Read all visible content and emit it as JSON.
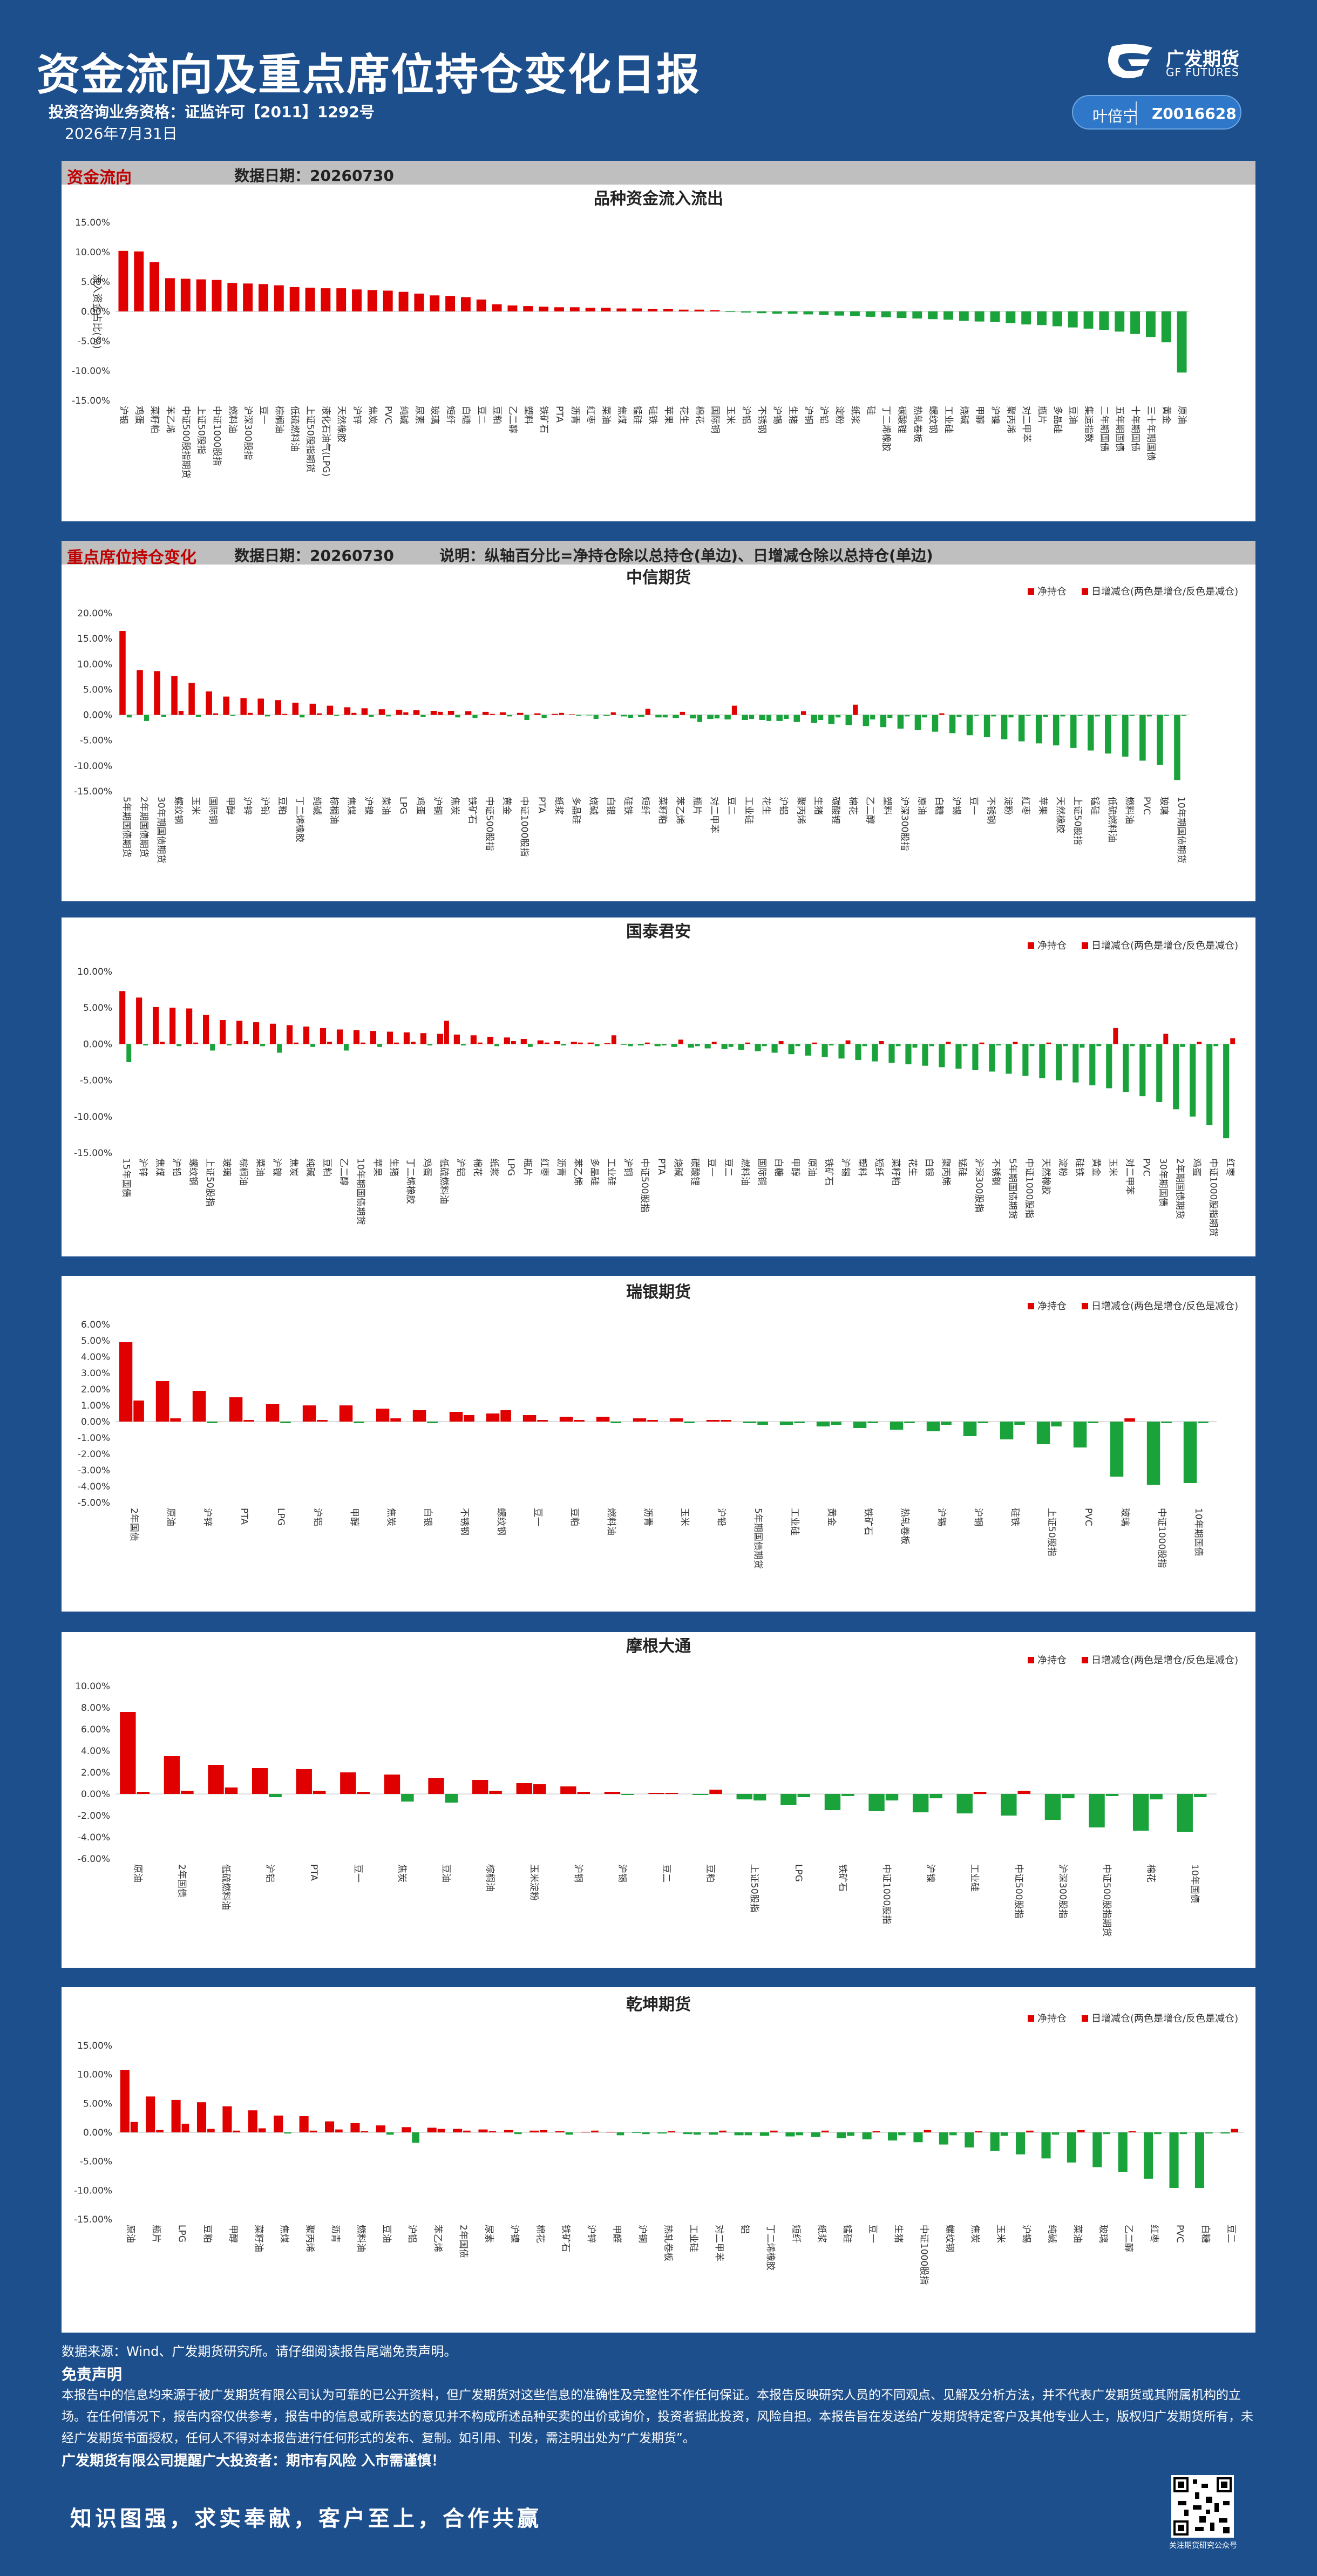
{
  "header": {
    "title": "资金流向及重点席位持仓变化日报",
    "license": "投资咨询业务资格：证监许可【2011】1292号",
    "date": "2026年7月31日",
    "logo_text": "广发期货",
    "logo_sub": "GF FUTURES",
    "analyst_name": "叶倍宁",
    "analyst_id": "Z0016628"
  },
  "flow_section": {
    "name": "资金流向",
    "date_label": "数据日期：",
    "date": "20260730"
  },
  "seat_section": {
    "name": "重点席位持仓变化",
    "date_label": "数据日期：",
    "date": "20260730",
    "note": "说明：纵轴百分比=净持仓除以总持仓(单边)、日增减仓除以总持仓(单边)"
  },
  "colors": {
    "up": "#e00000",
    "down": "#1aa33b",
    "header_bg": "#1d4f8c",
    "bar_gray": "#bfbfbf"
  },
  "legend": {
    "net": "净持仓",
    "daily": "日增减仓(两色是增仓/反色是减仓)"
  },
  "chart_data": [
    {
      "type": "bar",
      "title": "品种资金流入流出",
      "ylabel": "流入资金占比(%)",
      "ylim": [
        -15,
        15
      ],
      "yticks": [
        "15.00%",
        "10.00%",
        "5.00%",
        "0.00%",
        "-5.00%",
        "-10.00%",
        "-15.00%"
      ],
      "categories": [
        "沪银",
        "鸡蛋",
        "菜籽粕",
        "苯乙烯",
        "中证500股指期货",
        "上证50股指",
        "中证1000股指",
        "燃料油",
        "沪深300股指",
        "豆一",
        "棕榈油",
        "低硫燃料油",
        "上证50股指期货",
        "液化石油气(LPG)",
        "天然橡胶",
        "沪锌",
        "焦炭",
        "PVC",
        "纯碱",
        "尿素",
        "玻璃",
        "短纤",
        "白糖",
        "豆二",
        "豆粕",
        "乙二醇",
        "塑料",
        "铁矿石",
        "PTA",
        "沥青",
        "红枣",
        "菜油",
        "焦煤",
        "锰硅",
        "硅铁",
        "苹果",
        "花生",
        "棉花",
        "国际铜",
        "玉米",
        "沪铝",
        "不锈钢",
        "沪锡",
        "生猪",
        "沪铜",
        "沪铅",
        "淀粉",
        "纸浆",
        "硅",
        "丁二烯橡胶",
        "碳酸锂",
        "热轧卷板",
        "螺纹钢",
        "工业硅",
        "烧碱",
        "甲醇",
        "沪镍",
        "聚丙烯",
        "对二甲苯",
        "瓶片",
        "多晶硅",
        "豆油",
        "集运指数",
        "二年期国债",
        "五年期国债",
        "十年期国债",
        "三十年期国债",
        "黄金",
        "原油"
      ],
      "values": [
        10.2,
        10.1,
        8.3,
        5.6,
        5.5,
        5.4,
        5.3,
        4.8,
        4.7,
        4.6,
        4.4,
        4.1,
        4.0,
        3.9,
        3.9,
        3.7,
        3.6,
        3.5,
        3.3,
        3.0,
        2.7,
        2.6,
        2.4,
        2.0,
        1.2,
        1.0,
        0.9,
        0.8,
        0.7,
        0.7,
        0.6,
        0.6,
        0.5,
        0.5,
        0.4,
        0.4,
        0.3,
        0.3,
        0.2,
        -0.1,
        -0.2,
        -0.3,
        -0.4,
        -0.4,
        -0.5,
        -0.6,
        -0.7,
        -0.8,
        -0.9,
        -1.0,
        -1.1,
        -1.2,
        -1.3,
        -1.4,
        -1.6,
        -1.7,
        -1.8,
        -2.0,
        -2.2,
        -2.3,
        -2.5,
        -2.7,
        -2.9,
        -3.1,
        -3.4,
        -3.8,
        -4.3,
        -5.2,
        -10.3
      ]
    },
    {
      "type": "bar",
      "title": "中信期货",
      "ylim": [
        -15,
        20
      ],
      "yticks": [
        "20.00%",
        "15.00%",
        "10.00%",
        "5.00%",
        "0.00%",
        "-5.00%",
        "-10.00%",
        "-15.00%"
      ],
      "series": [
        {
          "name": "净持仓",
          "values": [
            16.5,
            8.8,
            8.6,
            7.6,
            6.3,
            4.6,
            3.6,
            3.3,
            3.2,
            2.9,
            2.4,
            2.2,
            1.8,
            1.5,
            1.3,
            1.1,
            1.0,
            0.9,
            0.8,
            0.8,
            0.7,
            0.6,
            0.5,
            0.4,
            0.3,
            0.2,
            0.1,
            -0.1,
            -0.2,
            -0.3,
            -0.4,
            -0.5,
            -0.6,
            -0.7,
            -0.8,
            -0.9,
            -1.0,
            -1.0,
            -1.2,
            -1.4,
            -1.6,
            -1.8,
            -2.0,
            -2.2,
            -2.4,
            -2.7,
            -3.0,
            -3.3,
            -3.6,
            -4.0,
            -4.4,
            -4.8,
            -5.2,
            -5.6,
            -6.0,
            -6.5,
            -7.0,
            -7.6,
            -8.2,
            -9.0,
            -9.8,
            -12.8
          ]
        },
        {
          "name": "日增减仓(两色是增仓/反色是减仓)",
          "values": [
            -0.5,
            -1.2,
            -0.4,
            0.8,
            -0.4,
            0.3,
            -0.2,
            0.4,
            -0.3,
            0.2,
            -0.5,
            0.3,
            -0.2,
            0.4,
            -0.4,
            -0.3,
            0.5,
            -0.4,
            0.6,
            -0.5,
            -0.6,
            0.2,
            -0.3,
            -1.0,
            -0.6,
            0.4,
            -0.2,
            -0.8,
            0.5,
            -0.6,
            1.2,
            -0.5,
            0.6,
            -1.4,
            -0.7,
            1.8,
            -0.8,
            -1.2,
            -0.8,
            0.7,
            -1.0,
            -0.5,
            2.0,
            -0.9,
            -0.6,
            -0.3,
            -0.5,
            0.3,
            -0.4,
            -0.2,
            -0.3,
            -0.5,
            -0.2,
            -0.4,
            -0.3,
            -0.2,
            -0.3,
            -0.2,
            -0.2,
            -0.3,
            -0.2,
            -0.2
          ]
        }
      ],
      "categories": [
        "5年期国债期货",
        "2年期国债期货",
        "30年期国债期货",
        "螺纹钢",
        "玉米",
        "国际铜",
        "甲醇",
        "沪锌",
        "沪铅",
        "豆粕",
        "丁二烯橡胶",
        "纯碱",
        "棕榈油",
        "焦煤",
        "沪镍",
        "菜油",
        "LPG",
        "鸡蛋",
        "沪铜",
        "焦炭",
        "铁矿石",
        "中证500股指",
        "黄金",
        "中证1000股指",
        "PTA",
        "纸浆",
        "多晶硅",
        "烧碱",
        "白银",
        "硅铁",
        "短纤",
        "菜籽粕",
        "苯乙烯",
        "瓶片",
        "对二甲苯",
        "豆二",
        "工业硅",
        "花生",
        "沪铝",
        "聚丙烯",
        "生猪",
        "碳酸锂",
        "棉花",
        "乙二醇",
        "塑料",
        "沪深300股指",
        "原油",
        "白糖",
        "沪锡",
        "豆一",
        "不锈钢",
        "淀粉",
        "红枣",
        "苹果",
        "天然橡胶",
        "上证50股指",
        "锰硅",
        "低硫燃料油",
        "燃料油",
        "PVC",
        "玻璃",
        "10年期国债期货"
      ]
    },
    {
      "type": "bar",
      "title": "国泰君安",
      "ylim": [
        -15,
        10
      ],
      "yticks": [
        "10.00%",
        "5.00%",
        "0.00%",
        "-5.00%",
        "-10.00%",
        "-15.00%"
      ],
      "series": [
        {
          "name": "净持仓",
          "values": [
            7.3,
            6.4,
            5.1,
            5.0,
            4.9,
            4.0,
            3.3,
            3.2,
            3.0,
            2.8,
            2.6,
            2.4,
            2.2,
            2.0,
            1.9,
            1.8,
            1.7,
            1.6,
            1.5,
            1.4,
            1.3,
            1.2,
            1.0,
            0.9,
            0.7,
            0.5,
            0.4,
            0.3,
            0.2,
            0.1,
            -0.1,
            -0.2,
            -0.3,
            -0.4,
            -0.5,
            -0.6,
            -0.7,
            -0.8,
            -1.0,
            -1.2,
            -1.4,
            -1.6,
            -1.8,
            -2.0,
            -2.2,
            -2.4,
            -2.6,
            -2.8,
            -3.0,
            -3.2,
            -3.4,
            -3.6,
            -3.8,
            -4.1,
            -4.4,
            -4.7,
            -5.0,
            -5.3,
            -5.7,
            -6.1,
            -6.6,
            -7.2,
            -8.0,
            -9.0,
            -10.0,
            -11.2,
            -13.0
          ]
        },
        {
          "name": "日增减仓(两色是增仓/反色是减仓)",
          "values": [
            -2.5,
            -0.2,
            0.3,
            -0.3,
            0.2,
            -0.9,
            -0.2,
            0.4,
            -0.3,
            -1.2,
            0.2,
            -0.4,
            0.3,
            -0.9,
            0.2,
            -0.4,
            0.2,
            0.3,
            -0.2,
            3.2,
            -0.2,
            0.2,
            -0.3,
            0.4,
            -0.4,
            0.2,
            -0.2,
            0.2,
            -0.3,
            1.2,
            -0.3,
            0.2,
            -0.2,
            0.6,
            -0.3,
            0.3,
            -0.4,
            0.2,
            -0.3,
            0.4,
            -0.3,
            0.2,
            -0.2,
            0.5,
            -0.3,
            0.4,
            -0.3,
            -0.5,
            -0.3,
            0.3,
            -0.3,
            0.2,
            -0.2,
            0.3,
            -0.3,
            0.2,
            -0.3,
            -0.5,
            -0.3,
            2.2,
            -0.3,
            -0.4,
            1.4,
            -0.4,
            0.3,
            -0.3,
            0.8
          ]
        }
      ],
      "categories": [
        "15年国债",
        "沪锌",
        "焦煤",
        "沪铅",
        "螺纹钢",
        "上证50股指",
        "玻璃",
        "棕榈油",
        "菜油",
        "沪镍",
        "焦炭",
        "纯碱",
        "豆粕",
        "乙二醇",
        "10年期国债期货",
        "苹果",
        "生猪",
        "丁二烯橡胶",
        "鸡蛋",
        "低硫燃料油",
        "沪铝",
        "棉花",
        "纸浆",
        "LPG",
        "瓶片",
        "红枣",
        "沥青",
        "苯乙烯",
        "多晶硅",
        "工业硅",
        "沪铜",
        "中证500股指",
        "PTA",
        "烧碱",
        "碳酸锂",
        "豆一",
        "豆二",
        "燃料油",
        "国际铜",
        "白糖",
        "甲醇",
        "原油",
        "铁矿石",
        "沪锡",
        "塑料",
        "短纤",
        "菜籽粕",
        "花生",
        "白银",
        "聚丙烯",
        "锰硅",
        "沪深300股指",
        "不锈钢",
        "5年期国债期货",
        "中证1000股指",
        "天然橡胶",
        "淀粉",
        "硅铁",
        "黄金",
        "玉米",
        "对二甲苯",
        "PVC",
        "30年期国债",
        "2年期国债期货",
        "鸡蛋",
        "中证1000股指期货",
        "红枣"
      ]
    },
    {
      "type": "bar",
      "title": "瑞银期货",
      "ylim": [
        -5,
        6
      ],
      "yticks": [
        "6.00%",
        "5.00%",
        "4.00%",
        "3.00%",
        "2.00%",
        "1.00%",
        "0.00%",
        "-1.00%",
        "-2.00%",
        "-3.00%",
        "-4.00%",
        "-5.00%"
      ],
      "series": [
        {
          "name": "净持仓",
          "values": [
            4.9,
            2.5,
            1.9,
            1.5,
            1.1,
            1.0,
            1.0,
            0.8,
            0.7,
            0.6,
            0.5,
            0.4,
            0.3,
            0.3,
            0.2,
            0.2,
            0.1,
            -0.1,
            -0.2,
            -0.3,
            -0.4,
            -0.5,
            -0.6,
            -0.9,
            -1.1,
            -1.4,
            -1.6,
            -3.4,
            -3.9,
            -3.8
          ]
        },
        {
          "name": "日增减仓(两色是增仓/反色是减仓)",
          "values": [
            1.3,
            0.2,
            -0.1,
            0.1,
            -0.1,
            0.1,
            -0.1,
            0.2,
            -0.1,
            0.4,
            0.7,
            0.1,
            0.1,
            -0.1,
            0.1,
            -0.1,
            0.1,
            -0.2,
            -0.1,
            -0.2,
            -0.1,
            -0.1,
            -0.2,
            -0.1,
            -0.2,
            -0.3,
            -0.1,
            0.2,
            -0.1,
            -0.1
          ]
        }
      ],
      "categories": [
        "2年国债",
        "原油",
        "沪锌",
        "PTA",
        "LPG",
        "沪铝",
        "甲醇",
        "焦炭",
        "白银",
        "不锈钢",
        "螺纹钢",
        "豆一",
        "豆粕",
        "燃料油",
        "沥青",
        "玉米",
        "沪铅",
        "5年期国债期货",
        "工业硅",
        "黄金",
        "铁矿石",
        "热轧卷板",
        "沪锡",
        "沪铜",
        "硅铁",
        "上证50股指",
        "PVC",
        "玻璃",
        "中证1000股指",
        "10年期国债"
      ]
    },
    {
      "type": "bar",
      "title": "摩根大通",
      "ylim": [
        -6,
        10
      ],
      "yticks": [
        "10.00%",
        "8.00%",
        "6.00%",
        "4.00%",
        "2.00%",
        "0.00%",
        "-2.00%",
        "-4.00%",
        "-6.00%"
      ],
      "series": [
        {
          "name": "净持仓",
          "values": [
            7.6,
            3.5,
            2.7,
            2.4,
            2.3,
            2.0,
            1.8,
            1.5,
            1.3,
            1.0,
            0.7,
            0.2,
            0.1,
            -0.1,
            -0.5,
            -1.0,
            -1.5,
            -1.6,
            -1.7,
            -1.8,
            -2.0,
            -2.4,
            -3.1,
            -3.4,
            -3.5
          ]
        },
        {
          "name": "日增减仓(两色是增仓/反色是减仓)",
          "values": [
            0.2,
            0.3,
            0.6,
            -0.3,
            0.3,
            0.2,
            -0.7,
            -0.8,
            0.3,
            0.9,
            0.2,
            -0.1,
            0.1,
            0.4,
            -0.6,
            -0.3,
            -0.2,
            -0.6,
            -0.4,
            0.2,
            0.3,
            -0.4,
            -0.2,
            -0.5,
            -0.3
          ]
        }
      ],
      "categories": [
        "原油",
        "2年国债",
        "低硫燃料油",
        "沪铝",
        "PTA",
        "豆一",
        "焦炭",
        "豆油",
        "棕榈油",
        "玉米淀粉",
        "沪铜",
        "沪锡",
        "豆二",
        "豆粕",
        "上证50股指",
        "LPG",
        "铁矿石",
        "中证1000股指",
        "沪镍",
        "工业硅",
        "中证500股指",
        "沪深300股指",
        "中证500股指期货",
        "棉花",
        "10年国债"
      ]
    },
    {
      "type": "bar",
      "title": "乾坤期货",
      "ylim": [
        -15,
        15
      ],
      "yticks": [
        "15.00%",
        "10.00%",
        "5.00%",
        "0.00%",
        "-5.00%",
        "-10.00%",
        "-15.00%"
      ],
      "series": [
        {
          "name": "净持仓",
          "values": [
            10.8,
            6.2,
            5.6,
            5.2,
            4.5,
            3.8,
            2.9,
            2.8,
            1.9,
            1.6,
            1.2,
            0.9,
            0.8,
            0.6,
            0.5,
            0.4,
            0.3,
            0.2,
            0.1,
            0.1,
            -0.1,
            -0.2,
            -0.3,
            -0.4,
            -0.5,
            -0.6,
            -0.7,
            -0.8,
            -1.0,
            -1.2,
            -1.4,
            -1.7,
            -2.1,
            -2.6,
            -3.2,
            -3.8,
            -4.5,
            -5.2,
            -6.0,
            -6.8,
            -8.0,
            -9.6,
            -9.6,
            -0.2
          ]
        },
        {
          "name": "日增减仓(两色是增仓/反色是减仓)",
          "values": [
            1.8,
            0.4,
            1.5,
            0.6,
            0.3,
            0.7,
            -0.2,
            0.3,
            0.5,
            0.2,
            -0.4,
            -1.8,
            0.6,
            0.3,
            0.2,
            -0.3,
            0.4,
            -0.4,
            0.3,
            -0.5,
            -0.3,
            0.2,
            -0.4,
            0.3,
            -0.5,
            0.3,
            -0.5,
            0.3,
            -0.6,
            0.2,
            -0.5,
            0.4,
            -0.5,
            0.2,
            -0.6,
            0.3,
            -0.4,
            0.4,
            -0.3,
            0.2,
            -0.3,
            -0.3,
            -0.2,
            0.6
          ]
        }
      ],
      "categories": [
        "原油",
        "瓶片",
        "LPG",
        "豆粕",
        "甲醇",
        "菜籽油",
        "焦煤",
        "聚丙烯",
        "沥青",
        "燃料油",
        "豆油",
        "沪铝",
        "苯乙烯",
        "2年国债",
        "尿素",
        "沪镍",
        "棉花",
        "铁矿石",
        "沪锌",
        "甲醛",
        "沪铜",
        "热轧卷板",
        "工业硅",
        "对二甲苯",
        "铝",
        "丁二烯橡胶",
        "短纤",
        "纸浆",
        "锰硅",
        "豆一",
        "生猪",
        "中证1000股指",
        "螺纹钢",
        "焦炭",
        "玉米",
        "沪锡",
        "纯碱",
        "菜油",
        "玻璃",
        "乙二醇",
        "红枣",
        "PVC",
        "白糖",
        "豆二"
      ]
    }
  ],
  "footer": {
    "sources": "数据来源：Wind、广发期货研究所。请仔细阅读报告尾端免责声明。",
    "disclaimer_title": "免责声明",
    "disclaimer": "本报告中的信息均来源于被广发期货有限公司认为可靠的已公开资料，但广发期货对这些信息的准确性及完整性不作任何保证。本报告反映研究人员的不同观点、见解及分析方法，并不代表广发期货或其附属机构的立场。在任何情况下，报告内容仅供参考，报告中的信息或所表达的意见并不构成所述品种买卖的出价或询价，投资者据此投资，风险自担。本报告旨在发送给广发期货特定客户及其他专业人士，版权归广发期货所有，未经广发期货书面授权，任何人不得对本报告进行任何形式的发布、复制。如引用、刊发，需注明出处为“广发期货”。",
    "company_line": "广发期货有限公司提醒广大投资者：期市有风险  入市需谨慎！",
    "slogan": "知识图强，求实奉献，客户至上，合作共赢",
    "qr_caption": "关注期货研究公众号"
  }
}
